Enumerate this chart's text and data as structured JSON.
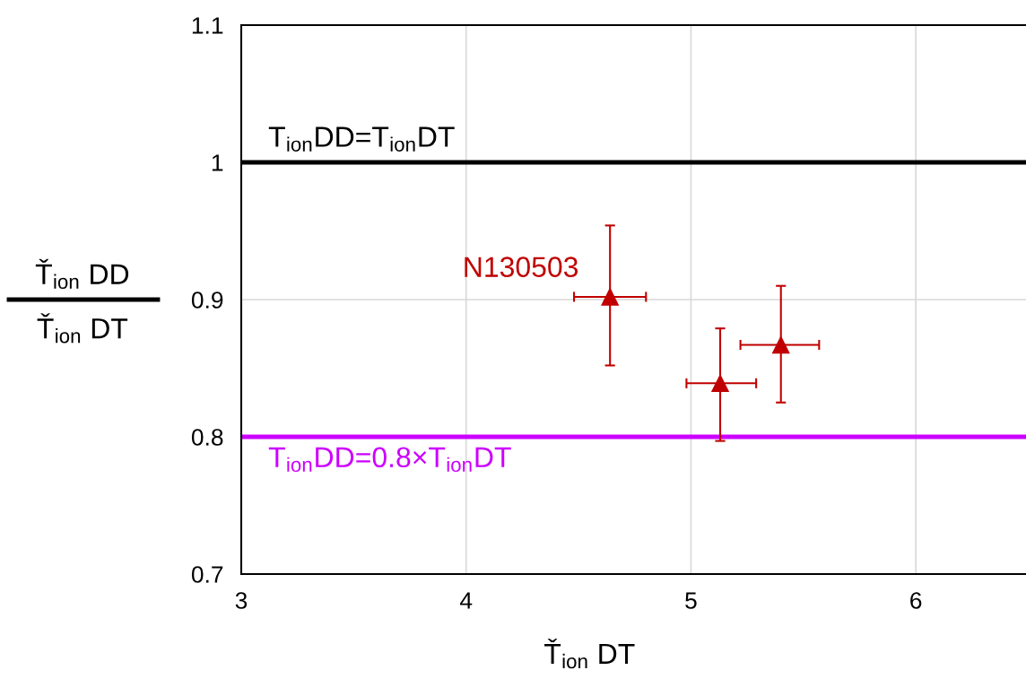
{
  "chart_data": {
    "type": "scatter",
    "xlabel": "Ť$_{ion}$ DT",
    "ylabel": "Ť$_{ion}$ DD\nŤ$_{ion}$ DT",
    "series": [
      {
        "color": "#c00000",
        "x": [
          4.64,
          5.13,
          5.4
        ],
        "values": [
          0.902,
          0.839,
          0.867
        ],
        "errors": [
          [
            0.852,
            0.954
          ],
          [
            0.797,
            0.879
          ],
          [
            0.825,
            0.91
          ]
        ],
        "xerrors": [
          [
            4.48,
            4.8
          ],
          [
            4.98,
            5.29
          ],
          [
            5.22,
            5.57
          ]
        ]
      }
    ],
    "marker": "triangle",
    "xlim": [
      3,
      6.49
    ],
    "xticks": [
      3,
      4,
      5,
      6
    ],
    "ylim": [
      0.7,
      1.1
    ],
    "yticks": [
      0.7,
      0.8,
      0.9,
      1,
      1.1
    ],
    "grid": true,
    "ref_lines": [
      {
        "axis": "y",
        "value": 1,
        "label": "T$_{ion}$DD=T$_{ion}$DT",
        "color": "#000000"
      },
      {
        "axis": "y",
        "value": 0.8,
        "label": "T$_{ion}$DD=0.8×T$_{ion}$DT",
        "color": "#cc00ff"
      }
    ],
    "annotations": [
      {
        "text": "N130503",
        "x": 4.64,
        "y": 0.902
      }
    ]
  }
}
